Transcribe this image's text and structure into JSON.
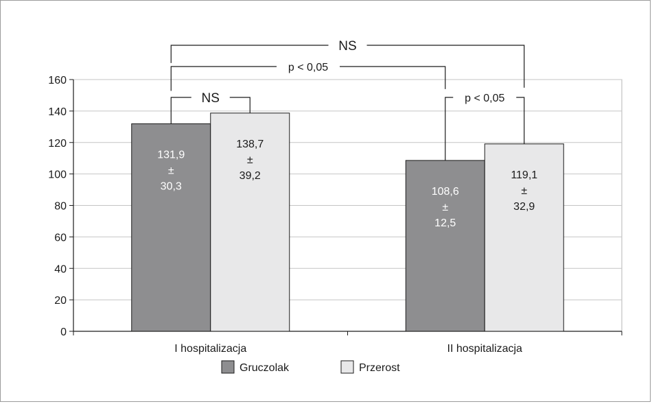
{
  "chart_data": {
    "type": "bar",
    "categories": [
      "I hospitalizacja",
      "II hospitalizacja"
    ],
    "series": [
      {
        "name": "Gruczolak",
        "values": [
          131.9,
          108.6
        ],
        "labels": [
          [
            "131,9",
            "±",
            "30,3"
          ],
          [
            "108,6",
            "±",
            "12,5"
          ]
        ],
        "color": "#8e8e90"
      },
      {
        "name": "Przerost",
        "values": [
          138.7,
          119.1
        ],
        "labels": [
          [
            "138,7",
            "±",
            "39,2"
          ],
          [
            "119,1",
            "±",
            "32,9"
          ]
        ],
        "color": "#e8e8e9"
      }
    ],
    "ylim": [
      0,
      160
    ],
    "yticks": [
      "0",
      "20",
      "40",
      "60",
      "80",
      "100",
      "120",
      "140",
      "160"
    ],
    "grid": true,
    "legend_position": "bottom",
    "annotations": [
      {
        "text": "NS",
        "between": "I hospitalizacja: Gruczolak vs Przerost"
      },
      {
        "text": "p < 0,05",
        "between": "II hospitalizacja: Gruczolak vs Przerost"
      },
      {
        "text": "p < 0,05",
        "between": "Gruczolak: I vs II hospitalizacja"
      },
      {
        "text": "NS",
        "between": "Przerost: I vs II hospitalizacja"
      }
    ]
  }
}
